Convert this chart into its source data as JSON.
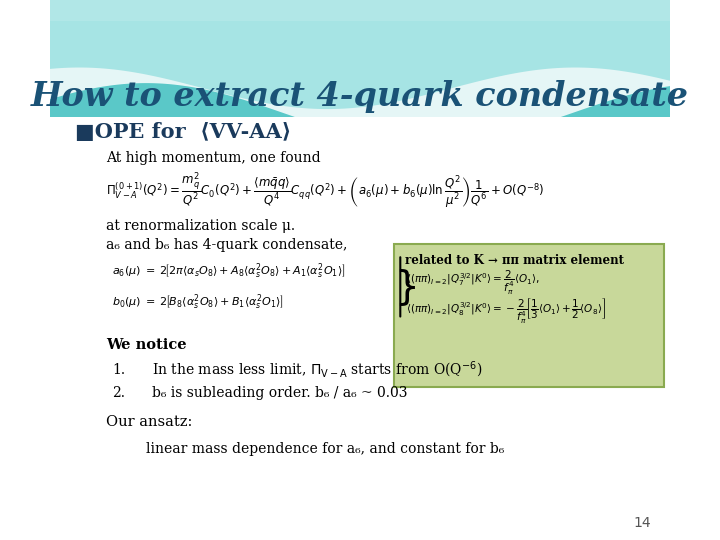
{
  "title": "How to extract 4-quark condensate",
  "title_color": "#1a5276",
  "title_fontsize": 24,
  "bg_color": "#ffffff",
  "header_teal": "#5bc8c8",
  "slide_number": "14",
  "bullet_color": "#1a5276",
  "text_color": "#000000",
  "green_box_color": "#c8d89a",
  "green_box_text_color": "#000000",
  "content": {
    "bullet1": "■OPE for  ⟨VV-AA⟩",
    "line1": "At high momentum, one found",
    "formula_main": "$\\Pi_{V-A}^{(0+1)}(Q^2) = \\dfrac{m_q^2}{Q^2}\\,C_0(Q^2) + \\dfrac{\\langle m\\bar{q}q\\rangle}{Q^4}\\,C_{qq}(Q^2) + \\left(a_6(\\mu)+b_6(\\mu)\\ln\\dfrac{Q^2}{\\mu^2}\\right)\\dfrac{1}{Q^6} + O(Q^{-8})$",
    "line2a": "at renormalization scale μ.",
    "line2b": "a₆ and b₆ has 4-quark condensate,",
    "formula_a6": "$a_6(\\mu)\\;=\\;2\\!\\left[2\\pi\\langle\\alpha_s O_8\\rangle + A_8\\langle\\alpha_s^2 O_8\\rangle + A_1\\langle\\alpha_s^2 O_1\\rangle\\right]$",
    "formula_b0": "$b_0(\\mu)\\;=\\;2\\!\\left[B_8\\langle\\alpha_s^2 O_8\\rangle + B_1\\langle\\alpha_s^2 O_1\\rangle\\right]$",
    "green_title": "related to K → ππ matrix element",
    "green_line1": "$\\langle(\\pi\\pi)_{I=2}|Q_7^{3/2}|K^0\\rangle = \\dfrac{2}{f_\\pi^4}\\langle O_1\\rangle,$",
    "green_line2": "$\\langle(\\pi\\pi)_{I=2}|Q_8^{3/2}|K^0\\rangle = -\\dfrac{2}{f_\\pi^4}\\!\\left[\\dfrac{1}{3}\\langle O_1\\rangle + \\dfrac{1}{2}\\langle O_8\\rangle\\right]$",
    "notice": "We notice",
    "item1": "In the mass less limit, $\\Pi_{\\mathrm{V-A}}$ starts from O(Q$^{-6}$)",
    "item2": "b₆ is subleading order. b₆ / a₆ ~ 0.03",
    "ansatz_title": "Our ansatz:",
    "ansatz_text": "linear mass dependence for a₆, and constant for b₆"
  }
}
